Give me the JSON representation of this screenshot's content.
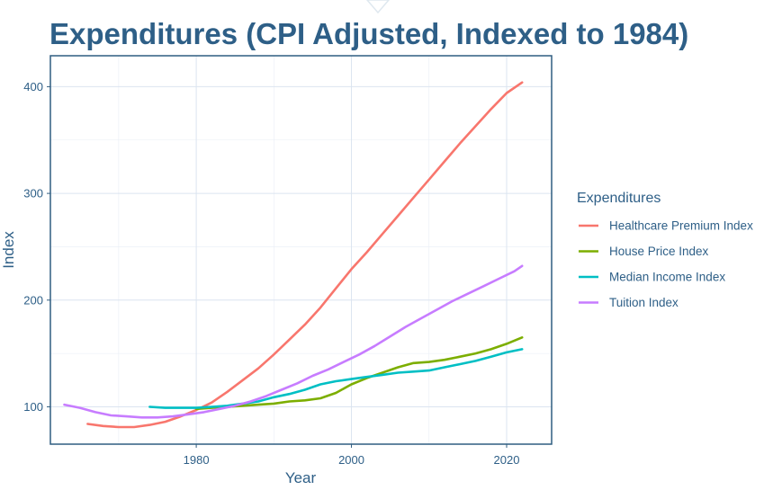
{
  "chart_data": {
    "type": "line",
    "title": "Expenditures (CPI Adjusted, Indexed to 1984)",
    "xlabel": "Year",
    "ylabel": "Index",
    "xlim": [
      1961.2,
      2025.8
    ],
    "ylim": [
      65,
      429
    ],
    "x_ticks": [
      1980,
      2000,
      2020
    ],
    "x_tick_labels": [
      "1980",
      "2000",
      "2020"
    ],
    "y_ticks": [
      100,
      200,
      300,
      400
    ],
    "y_tick_labels": [
      "100",
      "200",
      "300",
      "400"
    ],
    "grid": true,
    "legend_title": "Expenditures",
    "legend_position": "right",
    "series": [
      {
        "name": "Healthcare Premium Index",
        "color": "#F8766D",
        "points": [
          [
            1966,
            84
          ],
          [
            1968,
            82
          ],
          [
            1970,
            81
          ],
          [
            1972,
            81
          ],
          [
            1974,
            83
          ],
          [
            1976,
            86
          ],
          [
            1978,
            91
          ],
          [
            1980,
            97
          ],
          [
            1982,
            104
          ],
          [
            1984,
            114
          ],
          [
            1986,
            125
          ],
          [
            1988,
            136
          ],
          [
            1990,
            149
          ],
          [
            1992,
            163
          ],
          [
            1994,
            177
          ],
          [
            1996,
            193
          ],
          [
            1998,
            211
          ],
          [
            2000,
            229
          ],
          [
            2002,
            245
          ],
          [
            2004,
            262
          ],
          [
            2006,
            279
          ],
          [
            2008,
            296
          ],
          [
            2010,
            313
          ],
          [
            2012,
            330
          ],
          [
            2014,
            347
          ],
          [
            2016,
            363
          ],
          [
            2018,
            379
          ],
          [
            2020,
            394
          ],
          [
            2022,
            404
          ]
        ]
      },
      {
        "name": "House Price Index",
        "color": "#7CAE00",
        "points": [
          [
            1980,
            98
          ],
          [
            1982,
            99
          ],
          [
            1984,
            100
          ],
          [
            1986,
            101
          ],
          [
            1988,
            102
          ],
          [
            1990,
            103
          ],
          [
            1992,
            105
          ],
          [
            1994,
            106
          ],
          [
            1996,
            108
          ],
          [
            1998,
            113
          ],
          [
            2000,
            121
          ],
          [
            2002,
            127
          ],
          [
            2004,
            132
          ],
          [
            2006,
            137
          ],
          [
            2008,
            141
          ],
          [
            2010,
            142
          ],
          [
            2012,
            144
          ],
          [
            2014,
            147
          ],
          [
            2016,
            150
          ],
          [
            2018,
            154
          ],
          [
            2020,
            159
          ],
          [
            2022,
            165
          ]
        ]
      },
      {
        "name": "Median Income Index",
        "color": "#00BFC4",
        "points": [
          [
            1974,
            100
          ],
          [
            1976,
            99
          ],
          [
            1978,
            99
          ],
          [
            1980,
            99
          ],
          [
            1982,
            100
          ],
          [
            1984,
            101
          ],
          [
            1986,
            103
          ],
          [
            1988,
            105
          ],
          [
            1990,
            109
          ],
          [
            1992,
            112
          ],
          [
            1994,
            116
          ],
          [
            1996,
            121
          ],
          [
            1998,
            124
          ],
          [
            2000,
            126
          ],
          [
            2002,
            128
          ],
          [
            2004,
            130
          ],
          [
            2006,
            132
          ],
          [
            2008,
            133
          ],
          [
            2010,
            134
          ],
          [
            2012,
            137
          ],
          [
            2014,
            140
          ],
          [
            2016,
            143
          ],
          [
            2018,
            147
          ],
          [
            2020,
            151
          ],
          [
            2022,
            154
          ]
        ]
      },
      {
        "name": "Tuition Index",
        "color": "#C77CFF",
        "points": [
          [
            1963,
            102
          ],
          [
            1965,
            99
          ],
          [
            1967,
            95
          ],
          [
            1969,
            92
          ],
          [
            1971,
            91
          ],
          [
            1973,
            90
          ],
          [
            1975,
            90
          ],
          [
            1977,
            91
          ],
          [
            1979,
            93
          ],
          [
            1981,
            95
          ],
          [
            1983,
            98
          ],
          [
            1985,
            101
          ],
          [
            1987,
            105
          ],
          [
            1989,
            110
          ],
          [
            1991,
            116
          ],
          [
            1993,
            122
          ],
          [
            1995,
            129
          ],
          [
            1997,
            135
          ],
          [
            1999,
            142
          ],
          [
            2001,
            149
          ],
          [
            2003,
            157
          ],
          [
            2005,
            166
          ],
          [
            2007,
            175
          ],
          [
            2009,
            183
          ],
          [
            2011,
            191
          ],
          [
            2013,
            199
          ],
          [
            2015,
            206
          ],
          [
            2017,
            213
          ],
          [
            2019,
            220
          ],
          [
            2021,
            227
          ],
          [
            2022,
            232
          ]
        ]
      }
    ]
  }
}
